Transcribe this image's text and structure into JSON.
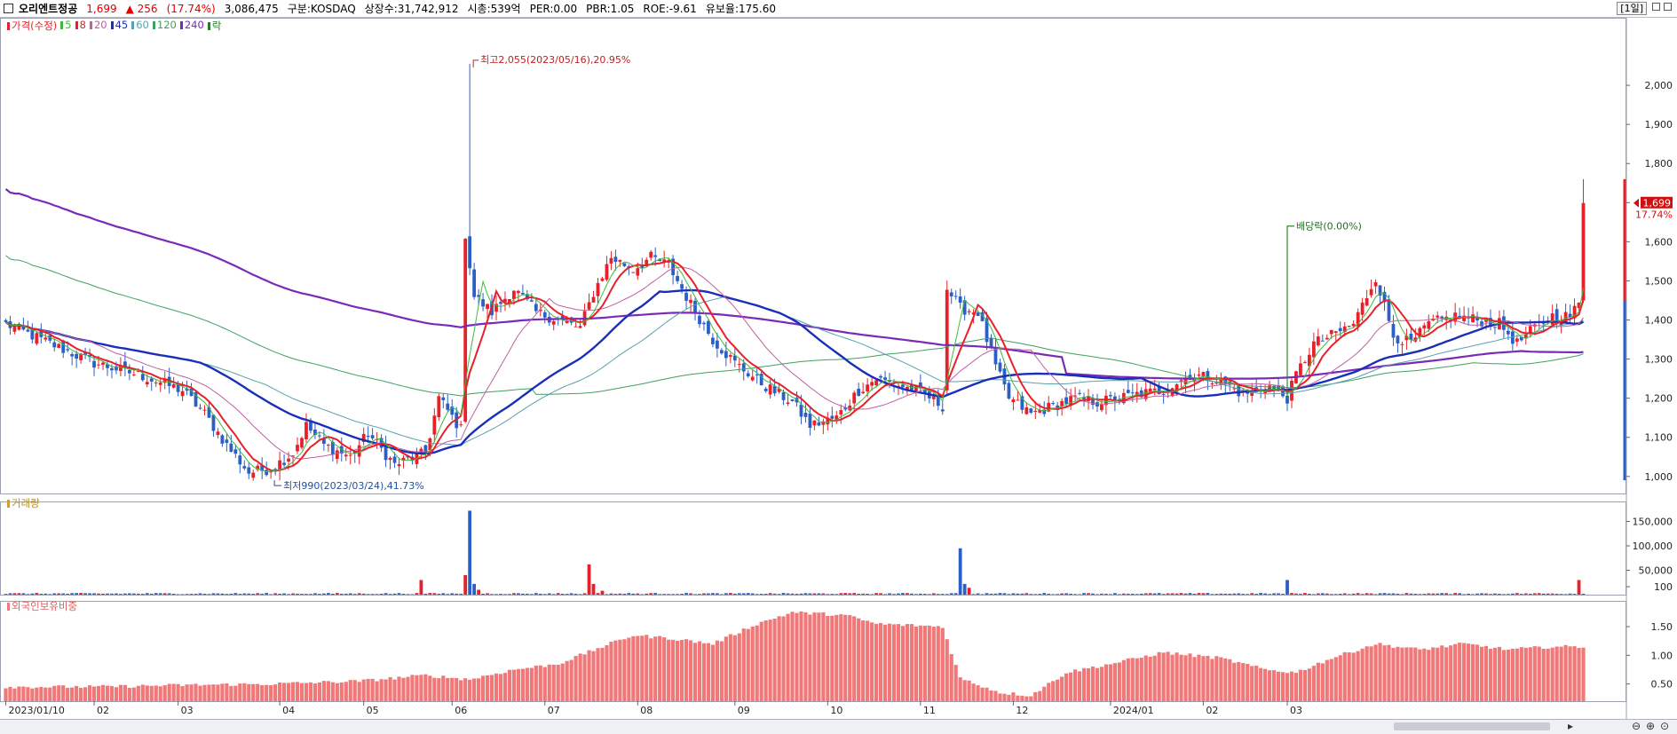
{
  "header": {
    "name": "오리엔트정공",
    "price": "1,699",
    "change": "▲ 256",
    "change_pct": "(17.74%)",
    "volume": "3,086,475",
    "market": "구분:KOSDAQ",
    "shares": "상장수:31,742,912",
    "mcap": "시총:539억",
    "per": "PER:0.00",
    "pbr": "PBR:1.05",
    "roe": "ROE:-9.61",
    "float": "유보율:175.60",
    "period": "[1일]"
  },
  "legend": {
    "price": "가격(수정)",
    "ma5": "5",
    "ma8": "8",
    "ma20": "20",
    "ma45": "45",
    "ma60": "60",
    "ma120": "120",
    "ma240": "240",
    "ex": "락"
  },
  "colors": {
    "up": "#e8202a",
    "down": "#2a5fc8",
    "ma5": "#3fb83f",
    "ma8": "#e8202a",
    "ma20": "#c060a0",
    "ma45": "#1a2fb8",
    "ma60": "#5aa0b0",
    "ma120": "#40a060",
    "ma240": "#7a2ab8",
    "foreign": "#f07878"
  },
  "panels": {
    "volume_label": "거래량",
    "foreign_label": "외국인보유비중"
  },
  "annotations": {
    "high": "최고2,055(2023/05/16),20.95%",
    "low": "최저990(2023/03/24),41.73%",
    "dividend": "배당락(0.00%)",
    "last_price": "1,699",
    "last_pct": "17.74%"
  },
  "chart_data": [
    {
      "type": "candlestick",
      "title": "가격(수정)",
      "y_ticks": [
        "1,000",
        "1,100",
        "1,200",
        "1,300",
        "1,400",
        "1,500",
        "1,600",
        "1,700",
        "1,800",
        "1,900",
        "2,000"
      ],
      "ylim": [
        970,
        2150
      ],
      "x_ticks": [
        "2023/01/10",
        "02",
        "03",
        "04",
        "05",
        "06",
        "07",
        "08",
        "09",
        "10",
        "11",
        "12",
        "2024/01",
        "02",
        "03"
      ],
      "close_anchors": [
        [
          0,
          1390
        ],
        [
          10,
          1340
        ],
        [
          20,
          1290
        ],
        [
          30,
          1260
        ],
        [
          40,
          1220
        ],
        [
          45,
          1160
        ],
        [
          50,
          1080
        ],
        [
          55,
          1010
        ],
        [
          60,
          1020
        ],
        [
          65,
          1060
        ],
        [
          68,
          1130
        ],
        [
          72,
          1080
        ],
        [
          78,
          1050
        ],
        [
          82,
          1110
        ],
        [
          88,
          1030
        ],
        [
          95,
          1060
        ],
        [
          98,
          1200
        ],
        [
          103,
          1120
        ],
        [
          104,
          1620
        ],
        [
          106,
          1460
        ],
        [
          110,
          1420
        ],
        [
          115,
          1480
        ],
        [
          120,
          1420
        ],
        [
          125,
          1400
        ],
        [
          130,
          1380
        ],
        [
          133,
          1470
        ],
        [
          137,
          1560
        ],
        [
          142,
          1530
        ],
        [
          146,
          1560
        ],
        [
          150,
          1540
        ],
        [
          155,
          1440
        ],
        [
          160,
          1350
        ],
        [
          165,
          1290
        ],
        [
          172,
          1230
        ],
        [
          178,
          1190
        ],
        [
          182,
          1130
        ],
        [
          188,
          1150
        ],
        [
          193,
          1220
        ],
        [
          197,
          1250
        ],
        [
          203,
          1230
        ],
        [
          208,
          1210
        ],
        [
          212,
          1180
        ],
        [
          213,
          1480
        ],
        [
          216,
          1430
        ],
        [
          220,
          1420
        ],
        [
          224,
          1280
        ],
        [
          227,
          1200
        ],
        [
          232,
          1160
        ],
        [
          237,
          1180
        ],
        [
          242,
          1200
        ],
        [
          247,
          1190
        ],
        [
          252,
          1200
        ],
        [
          256,
          1210
        ],
        [
          262,
          1220
        ],
        [
          268,
          1260
        ],
        [
          274,
          1250
        ],
        [
          280,
          1210
        ],
        [
          286,
          1230
        ],
        [
          290,
          1200
        ],
        [
          292,
          1260
        ],
        [
          296,
          1340
        ],
        [
          300,
          1360
        ],
        [
          305,
          1390
        ],
        [
          310,
          1510
        ],
        [
          314,
          1360
        ],
        [
          318,
          1340
        ],
        [
          322,
          1390
        ],
        [
          328,
          1410
        ],
        [
          333,
          1400
        ],
        [
          338,
          1390
        ],
        [
          342,
          1340
        ],
        [
          346,
          1380
        ],
        [
          350,
          1410
        ],
        [
          354,
          1410
        ],
        [
          356,
          1440
        ],
        [
          357,
          1699
        ]
      ],
      "extremes": {
        "high": 2055,
        "low": 990
      },
      "last_close": 1699
    },
    {
      "type": "bar",
      "title": "거래량",
      "y_ticks": [
        "150,000",
        "100,000",
        "50,000",
        "100"
      ],
      "ylim": [
        0,
        180000
      ],
      "spikes": [
        [
          94,
          30000
        ],
        [
          104,
          40000
        ],
        [
          105,
          172000
        ],
        [
          106,
          22000
        ],
        [
          107,
          10000
        ],
        [
          132,
          62000
        ],
        [
          133,
          22000
        ],
        [
          135,
          8000
        ],
        [
          216,
          95000
        ],
        [
          217,
          22000
        ],
        [
          218,
          14000
        ],
        [
          290,
          30000
        ],
        [
          356,
          30000
        ]
      ]
    },
    {
      "type": "bar",
      "title": "외국인보유비중",
      "y_ticks": [
        "1.50",
        "1.00",
        "0.50"
      ],
      "ylim": [
        0.2,
        1.95
      ],
      "anchors": [
        [
          0,
          0.45
        ],
        [
          20,
          0.45
        ],
        [
          40,
          0.48
        ],
        [
          60,
          0.5
        ],
        [
          80,
          0.55
        ],
        [
          95,
          0.65
        ],
        [
          105,
          0.58
        ],
        [
          115,
          0.75
        ],
        [
          125,
          0.85
        ],
        [
          135,
          1.15
        ],
        [
          142,
          1.35
        ],
        [
          150,
          1.3
        ],
        [
          160,
          1.2
        ],
        [
          170,
          1.55
        ],
        [
          178,
          1.75
        ],
        [
          190,
          1.7
        ],
        [
          197,
          1.55
        ],
        [
          212,
          1.5
        ],
        [
          216,
          0.6
        ],
        [
          225,
          0.35
        ],
        [
          232,
          0.3
        ],
        [
          240,
          0.7
        ],
        [
          250,
          0.85
        ],
        [
          262,
          1.05
        ],
        [
          275,
          0.95
        ],
        [
          285,
          0.75
        ],
        [
          292,
          0.7
        ],
        [
          300,
          0.95
        ],
        [
          310,
          1.2
        ],
        [
          320,
          1.1
        ],
        [
          330,
          1.2
        ],
        [
          340,
          1.1
        ],
        [
          350,
          1.15
        ],
        [
          357,
          1.15
        ]
      ]
    }
  ]
}
